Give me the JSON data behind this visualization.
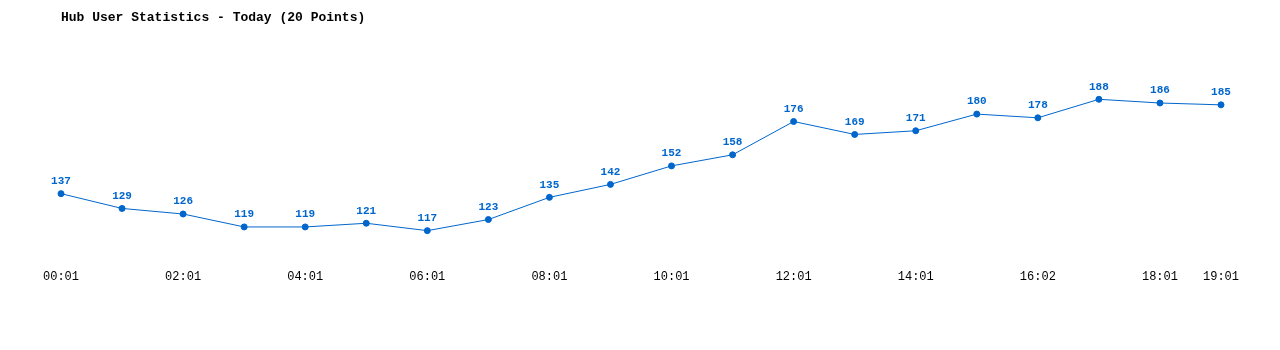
{
  "chart_data": {
    "type": "line",
    "title": "Hub User Statistics - Today (20 Points)",
    "categories": [
      "00:01",
      null,
      "02:01",
      null,
      "04:01",
      null,
      "06:01",
      null,
      "08:01",
      null,
      "10:01",
      null,
      "12:01",
      null,
      "14:01",
      null,
      "16:02",
      null,
      "18:01",
      "19:01"
    ],
    "series": [
      {
        "color": "#0066cc",
        "values": [
          137,
          129,
          126,
          119,
          119,
          121,
          117,
          123,
          135,
          142,
          152,
          158,
          176,
          169,
          171,
          180,
          178,
          188,
          186,
          185
        ]
      }
    ],
    "data_labels": true,
    "grid": false,
    "legend": false,
    "marker": "circle",
    "line_style": "solid"
  }
}
